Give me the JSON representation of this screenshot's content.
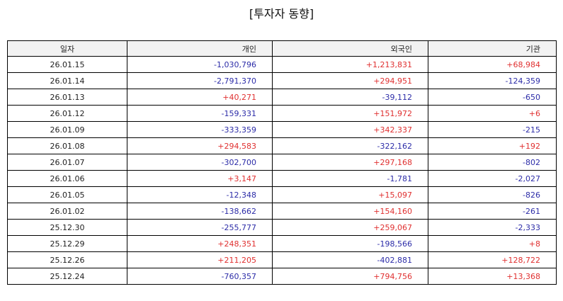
{
  "title": "[투자자 동향]",
  "table": {
    "headers": [
      "일자",
      "개인",
      "외국인",
      "기관"
    ],
    "rows": [
      [
        "26.01.15",
        "-1,030,796",
        "+1,213,831",
        "+68,984"
      ],
      [
        "26.01.14",
        "-2,791,370",
        "+294,951",
        "-124,359"
      ],
      [
        "26.01.13",
        "+40,271",
        "-39,112",
        "-650"
      ],
      [
        "26.01.12",
        "-159,331",
        "+151,972",
        "+6"
      ],
      [
        "26.01.09",
        "-333,359",
        "+342,337",
        "-215"
      ],
      [
        "26.01.08",
        "+294,583",
        "-322,162",
        "+192"
      ],
      [
        "26.01.07",
        "-302,700",
        "+297,168",
        "-802"
      ],
      [
        "26.01.06",
        "+3,147",
        "-1,781",
        "-2,027"
      ],
      [
        "26.01.05",
        "-12,348",
        "+15,097",
        "-826"
      ],
      [
        "26.01.02",
        "-138,662",
        "+154,160",
        "-261"
      ],
      [
        "25.12.30",
        "-255,777",
        "+259,067",
        "-2,333"
      ],
      [
        "25.12.29",
        "+248,351",
        "-198,566",
        "+8"
      ],
      [
        "25.12.26",
        "+211,205",
        "-402,881",
        "+128,722"
      ],
      [
        "25.12.24",
        "-760,357",
        "+794,756",
        "+13,368"
      ]
    ]
  },
  "colors": {
    "positive": "#e03030",
    "negative": "#2c2ca8",
    "header_bg": "#f2f2f2"
  }
}
